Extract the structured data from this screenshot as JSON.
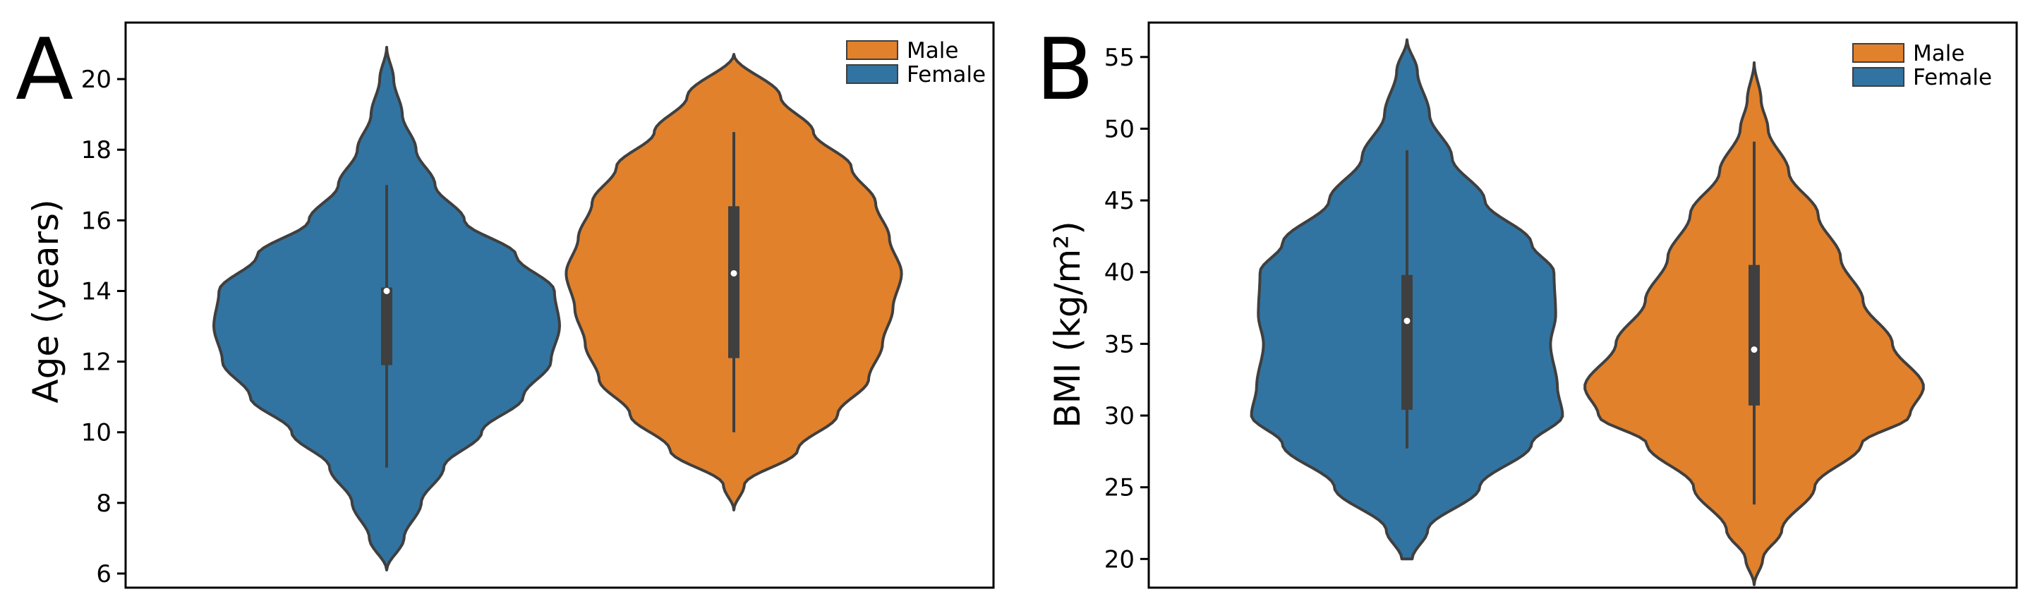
{
  "colors": {
    "male": "#e1812c",
    "female": "#3274a1",
    "box": "#3f3f3f",
    "outline": "#3f3f3f"
  },
  "chart_data": [
    {
      "type": "violin",
      "panel_letter": "A",
      "ylabel": "Age (years)",
      "xlabel": "",
      "ylim": [
        5.6,
        21.6
      ],
      "yticks": [
        6,
        8,
        10,
        12,
        14,
        16,
        18,
        20
      ],
      "legend": {
        "placement": "top-right",
        "entries": [
          "Male",
          "Female"
        ]
      },
      "series": [
        {
          "name": "Female",
          "color": "#3274a1",
          "min": 9.0,
          "q1": 11.9,
          "median": 14.0,
          "q3": 14.1,
          "max": 17.0,
          "density": [
            [
              6.1,
              0.0
            ],
            [
              7,
              0.1
            ],
            [
              8,
              0.2
            ],
            [
              9,
              0.33
            ],
            [
              10,
              0.55
            ],
            [
              11,
              0.79
            ],
            [
              12,
              0.95
            ],
            [
              13,
              1.0
            ],
            [
              14,
              0.97
            ],
            [
              15,
              0.75
            ],
            [
              16,
              0.45
            ],
            [
              17,
              0.28
            ],
            [
              18,
              0.17
            ],
            [
              19,
              0.09
            ],
            [
              20,
              0.04
            ],
            [
              20.9,
              0.0
            ]
          ]
        },
        {
          "name": "Male",
          "color": "#e1812c",
          "min": 10.0,
          "q1": 12.1,
          "median": 14.5,
          "q3": 16.4,
          "max": 18.5,
          "density": [
            [
              7.8,
              0.0
            ],
            [
              8.5,
              0.06
            ],
            [
              9.5,
              0.37
            ],
            [
              10.5,
              0.6
            ],
            [
              11.5,
              0.78
            ],
            [
              12.5,
              0.86
            ],
            [
              13.5,
              0.92
            ],
            [
              14.5,
              0.97
            ],
            [
              15.5,
              0.9
            ],
            [
              16.5,
              0.82
            ],
            [
              17.5,
              0.68
            ],
            [
              18.5,
              0.46
            ],
            [
              19.5,
              0.27
            ],
            [
              20.7,
              0.0
            ]
          ]
        }
      ]
    },
    {
      "type": "violin",
      "panel_letter": "B",
      "ylabel": "BMI (kg/m²)",
      "xlabel": "",
      "ylim": [
        18.0,
        57.4
      ],
      "yticks": [
        20,
        25,
        30,
        35,
        40,
        45,
        50,
        55
      ],
      "legend": {
        "placement": "top-right",
        "entries": [
          "Male",
          "Female"
        ]
      },
      "series": [
        {
          "name": "Female",
          "color": "#3274a1",
          "min": 27.7,
          "q1": 30.4,
          "median": 36.6,
          "q3": 39.8,
          "max": 48.5,
          "density": [
            [
              20.0,
              0.03
            ],
            [
              22,
              0.12
            ],
            [
              25,
              0.42
            ],
            [
              28,
              0.72
            ],
            [
              30,
              0.9
            ],
            [
              32,
              0.87
            ],
            [
              35,
              0.83
            ],
            [
              37,
              0.86
            ],
            [
              40,
              0.85
            ],
            [
              42,
              0.72
            ],
            [
              45,
              0.45
            ],
            [
              48,
              0.26
            ],
            [
              51,
              0.13
            ],
            [
              54,
              0.06
            ],
            [
              56.2,
              0.0
            ]
          ]
        },
        {
          "name": "Male",
          "color": "#e1812c",
          "min": 23.8,
          "q1": 30.7,
          "median": 34.6,
          "q3": 40.5,
          "max": 49.1,
          "density": [
            [
              18.2,
              0.0
            ],
            [
              20,
              0.05
            ],
            [
              22,
              0.16
            ],
            [
              25,
              0.35
            ],
            [
              28,
              0.62
            ],
            [
              30,
              0.9
            ],
            [
              32,
              0.98
            ],
            [
              35,
              0.8
            ],
            [
              38,
              0.63
            ],
            [
              41,
              0.5
            ],
            [
              44,
              0.37
            ],
            [
              47,
              0.2
            ],
            [
              50,
              0.08
            ],
            [
              52,
              0.04
            ],
            [
              54.6,
              0.0
            ]
          ]
        }
      ]
    }
  ]
}
